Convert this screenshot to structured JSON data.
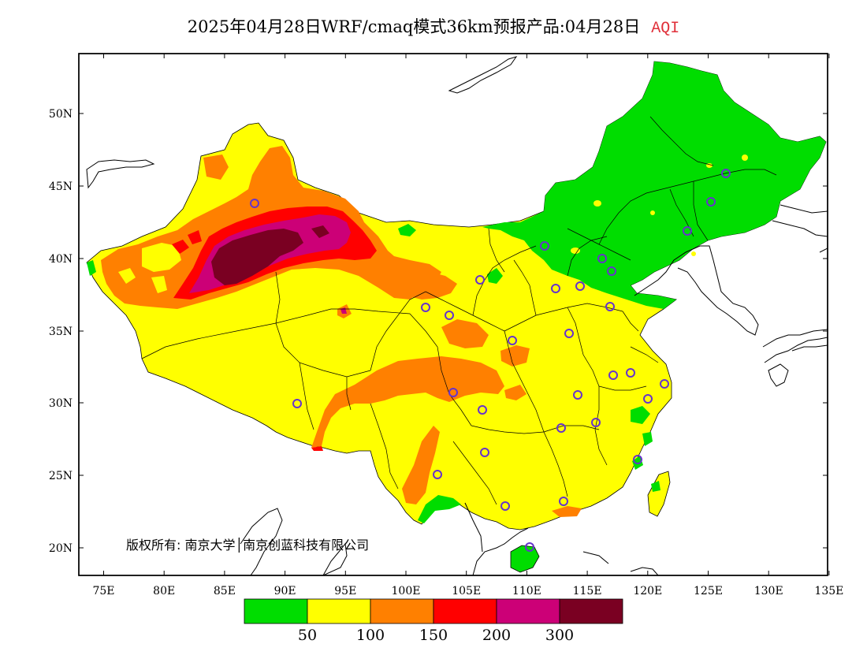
{
  "title": {
    "main": "2025年04月28日WRF/cmaq模式36km预报产品:04月28日",
    "variable": "AQI"
  },
  "map": {
    "lon_labels": [
      "75E",
      "80E",
      "85E",
      "90E",
      "95E",
      "100E",
      "105E",
      "110E",
      "115E",
      "120E",
      "125E",
      "130E",
      "135E"
    ],
    "lat_labels": [
      "20N",
      "25N",
      "30N",
      "35N",
      "40N",
      "45N",
      "50N"
    ],
    "copyright": "版权所有: 南京大学│南京创蓝科技有限公司"
  },
  "legend": {
    "colors": [
      "#00dd00",
      "#ffff00",
      "#ff8000",
      "#ff0000",
      "#cc0077",
      "#7a0022"
    ],
    "thresholds": [
      "50",
      "100",
      "150",
      "200",
      "300"
    ]
  },
  "colors": {
    "good": "#00dd00",
    "moderate": "#ffff00",
    "usg": "#ff8000",
    "unhealthy": "#ff0000",
    "very_unhealthy": "#cc0077",
    "hazardous": "#7a0022",
    "station_marker": "#6633cc"
  }
}
